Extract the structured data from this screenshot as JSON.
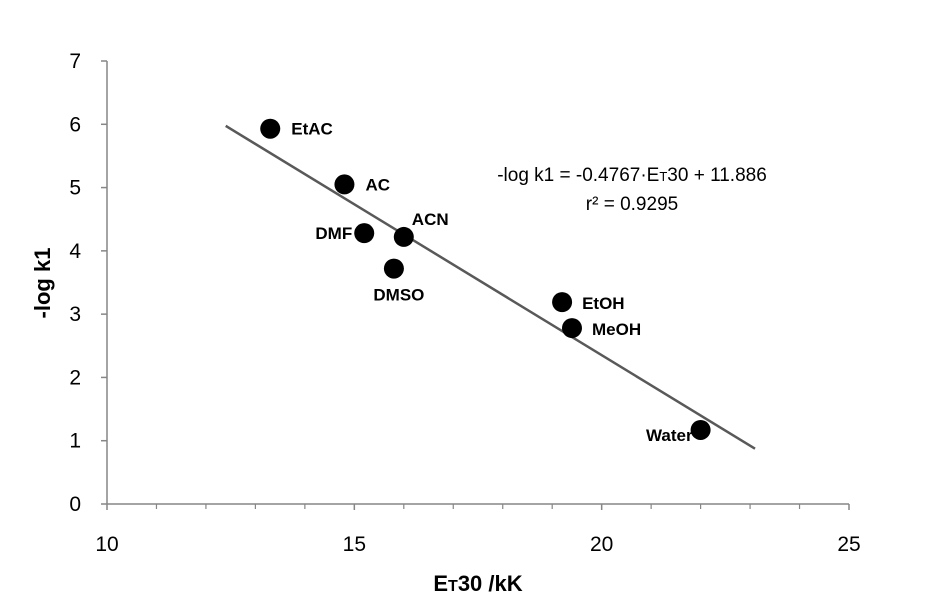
{
  "chart_data": {
    "type": "scatter",
    "xlabel_main": "E",
    "xlabel_sub": "T",
    "xlabel_rest": "30 /kK",
    "ylabel": "-log k1",
    "xlim": [
      10,
      25
    ],
    "ylim": [
      0,
      7
    ],
    "x_ticks": [
      "10",
      "15",
      "20",
      "25"
    ],
    "y_ticks": [
      "0",
      "1",
      "2",
      "3",
      "4",
      "5",
      "6",
      "7"
    ],
    "grid": false,
    "points": [
      {
        "label": "EtAC",
        "x": 13.3,
        "y": 5.93
      },
      {
        "label": "AC",
        "x": 14.8,
        "y": 5.05
      },
      {
        "label": "DMF",
        "x": 15.2,
        "y": 4.28
      },
      {
        "label": "ACN",
        "x": 16.0,
        "y": 4.22
      },
      {
        "label": "DMSO",
        "x": 15.8,
        "y": 3.72
      },
      {
        "label": "EtOH",
        "x": 19.2,
        "y": 3.19
      },
      {
        "label": "MeOH",
        "x": 19.4,
        "y": 2.78
      },
      {
        "label": "Water",
        "x": 22.0,
        "y": 1.17
      }
    ],
    "trendline": {
      "slope": -0.4767,
      "intercept": 11.886,
      "x_start": 12.4,
      "x_end": 23.1,
      "color": "#595959"
    },
    "equation": {
      "line1_pre": "-log k1 = -0.4767·E",
      "line1_sub": "T",
      "line1_post": "30 + 11.886",
      "line2": "r² = 0.9295"
    },
    "marker_color": "#000000"
  }
}
